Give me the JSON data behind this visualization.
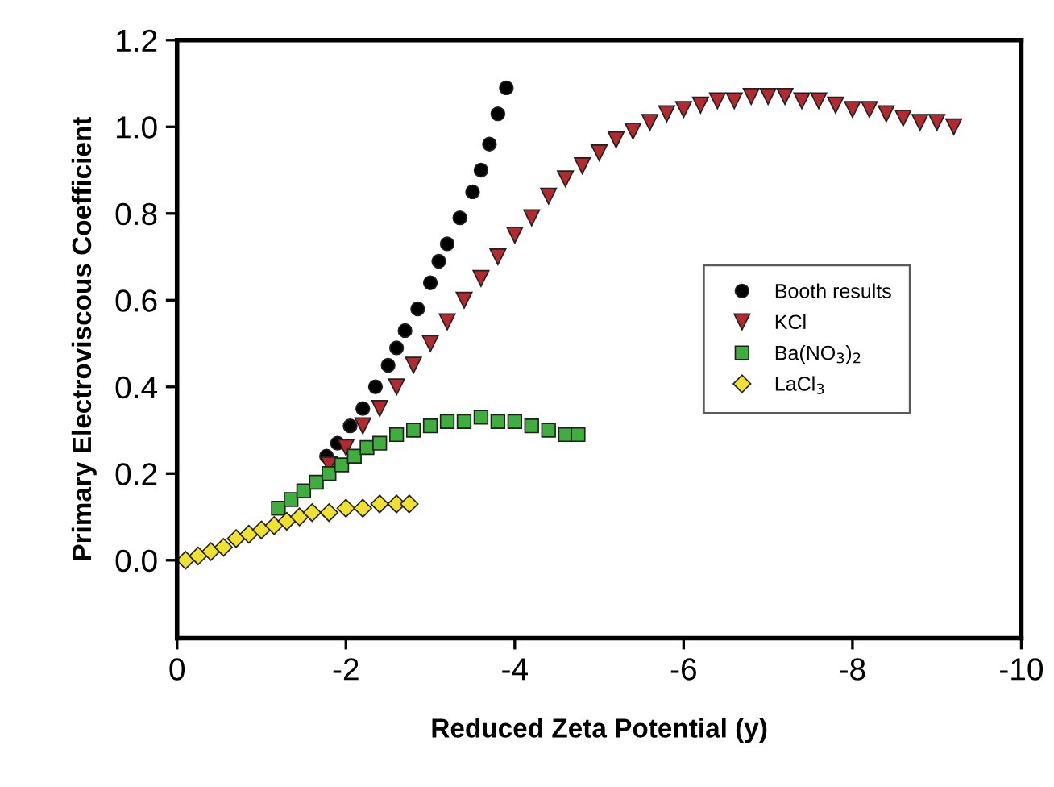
{
  "chart_data": {
    "type": "scatter",
    "xlabel": "Reduced Zeta Potential (y)",
    "ylabel": "Primary Electroviscous Coefficient",
    "xlim": [
      0,
      -10
    ],
    "ylim": [
      -0.18,
      1.2
    ],
    "xticks": [
      0,
      {
        "value": -2,
        "label": "-2"
      },
      {
        "value": -4,
        "label": "-4"
      },
      {
        "value": -6,
        "label": "-6"
      },
      {
        "value": -8,
        "label": "-8"
      },
      {
        "value": -10,
        "label": "-10"
      }
    ],
    "yticks": [
      {
        "value": 0,
        "label": "0.0"
      },
      {
        "value": 0.2,
        "label": "0.2"
      },
      {
        "value": 0.4,
        "label": "0.4"
      },
      {
        "value": 0.6,
        "label": "0.6"
      },
      {
        "value": 0.8,
        "label": "0.8"
      },
      {
        "value": 1.0,
        "label": "1.0"
      },
      {
        "value": 1.2,
        "label": "1.2"
      }
    ],
    "grid": false,
    "legend": "right",
    "series": [
      {
        "name": "Booth results",
        "color": "#000000",
        "marker": "circle",
        "x": [
          -1.77,
          -1.9,
          -2.05,
          -2.2,
          -2.35,
          -2.5,
          -2.6,
          -2.7,
          -2.85,
          -3.0,
          -3.1,
          -3.2,
          -3.35,
          -3.5,
          -3.6,
          -3.7,
          -3.8,
          -3.9
        ],
        "values": [
          0.24,
          0.27,
          0.31,
          0.35,
          0.4,
          0.45,
          0.49,
          0.53,
          0.58,
          0.64,
          0.69,
          0.73,
          0.79,
          0.85,
          0.9,
          0.96,
          1.03,
          1.09
        ]
      },
      {
        "name": "KCl",
        "color": "#b22a2e",
        "marker": "triangle",
        "x": [
          -1.8,
          -2.0,
          -2.2,
          -2.4,
          -2.6,
          -2.8,
          -3.0,
          -3.2,
          -3.4,
          -3.6,
          -3.8,
          -4.0,
          -4.2,
          -4.4,
          -4.6,
          -4.8,
          -5.0,
          -5.2,
          -5.4,
          -5.6,
          -5.8,
          -6.0,
          -6.2,
          -6.4,
          -6.6,
          -6.8,
          -7.0,
          -7.2,
          -7.4,
          -7.6,
          -7.8,
          -8.0,
          -8.2,
          -8.4,
          -8.6,
          -8.8,
          -9.0,
          -9.2
        ],
        "values": [
          0.22,
          0.26,
          0.31,
          0.35,
          0.4,
          0.45,
          0.5,
          0.55,
          0.6,
          0.65,
          0.7,
          0.75,
          0.79,
          0.84,
          0.88,
          0.91,
          0.94,
          0.97,
          0.99,
          1.01,
          1.03,
          1.04,
          1.05,
          1.06,
          1.06,
          1.07,
          1.07,
          1.07,
          1.06,
          1.06,
          1.05,
          1.04,
          1.04,
          1.03,
          1.02,
          1.01,
          1.01,
          1.0
        ]
      },
      {
        "name": "Ba(NO$_{3}$)$_{2}$",
        "color": "#3fae3f",
        "marker": "square",
        "x": [
          -1.2,
          -1.35,
          -1.5,
          -1.65,
          -1.8,
          -1.95,
          -2.1,
          -2.25,
          -2.4,
          -2.6,
          -2.8,
          -3.0,
          -3.2,
          -3.4,
          -3.6,
          -3.8,
          -4.0,
          -4.2,
          -4.4,
          -4.6,
          -4.75
        ],
        "values": [
          0.12,
          0.14,
          0.16,
          0.18,
          0.2,
          0.22,
          0.24,
          0.26,
          0.27,
          0.29,
          0.3,
          0.31,
          0.32,
          0.32,
          0.33,
          0.32,
          0.32,
          0.31,
          0.3,
          0.29,
          0.29
        ]
      },
      {
        "name": "LaCl$_{3}$",
        "color": "#f0e030",
        "marker": "diamond",
        "x": [
          -0.1,
          -0.25,
          -0.4,
          -0.55,
          -0.7,
          -0.85,
          -1.0,
          -1.15,
          -1.3,
          -1.45,
          -1.6,
          -1.8,
          -2.0,
          -2.2,
          -2.4,
          -2.6,
          -2.75
        ],
        "values": [
          0.0,
          0.01,
          0.02,
          0.03,
          0.05,
          0.06,
          0.07,
          0.08,
          0.09,
          0.1,
          0.11,
          0.11,
          0.12,
          0.12,
          0.13,
          0.13,
          0.13
        ]
      }
    ]
  }
}
